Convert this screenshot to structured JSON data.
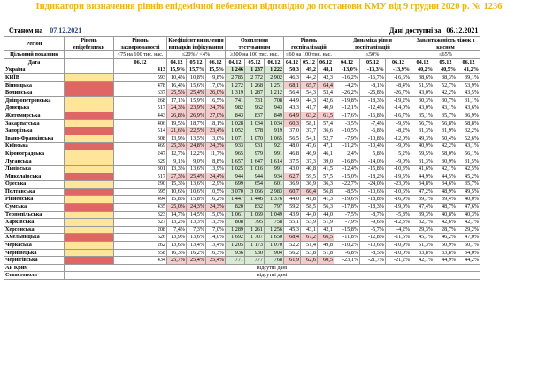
{
  "title": "Індикатори визначення рівнів епідемічної небезпеки відповідно до постанови КМУ від 9 грудня 2020 р. № 1236",
  "status_label": "Станом на",
  "status_date": "07.12.2021",
  "data_label": "Дані доступні за",
  "data_date": "06.12.2021",
  "headers": {
    "region": "Регіон",
    "level": "Рівень епідебезпеки",
    "incidence": "Рівень захворюваності",
    "detection": "Коефіцієнт виявлення випадків інфікування",
    "testing": "Охоплення тестуванням",
    "hospital": "Рівень госпіталізацій",
    "dynamics": "Динаміка рівня госпіталізацій",
    "occupancy": "Завантаженість ліжок з киснем",
    "target": "Цільовий показник",
    "date": "Дата",
    "t_incidence": "<75 на 100 тис. нас.",
    "t_detection": "≤20% / <4%",
    "t_testing": "≥300 на 100 тис. нас.",
    "t_hospital": "≤60 на 100 тис. нас.",
    "t_dynamics": "≤50%",
    "t_occupancy": "≤65%",
    "d_incidence": "06.12",
    "dates": [
      "04.12",
      "05.12",
      "06.12"
    ]
  },
  "rows": [
    {
      "name": "Україна",
      "level": "",
      "inc": "413",
      "det": [
        "15,9%",
        "15,7%",
        "15,5%"
      ],
      "test": [
        "1 246",
        "1 237",
        "1 222"
      ],
      "hosp": [
        "50,3",
        "49,2",
        "48,1"
      ],
      "dyn": [
        "-13,0%",
        "-13,3%",
        "-13,9%"
      ],
      "occ": [
        "40,2%",
        "40,5%",
        "41,2%"
      ]
    },
    {
      "name": "КИЇВ",
      "level": "yel",
      "inc": "593",
      "det": [
        "10,4%",
        "10,8%",
        "9,8%"
      ],
      "test": [
        "2 785",
        "2 772",
        "2 902"
      ],
      "hosp": [
        "46,3",
        "44,2",
        "42,3"
      ],
      "dyn": [
        "-16,2%",
        "-16,7%",
        "-16,6%"
      ],
      "occ": [
        "38,6%",
        "38,3%",
        "39,1%"
      ]
    },
    {
      "name": "Вінницька",
      "level": "red",
      "inc": "478",
      "det": [
        "16,4%",
        "15,6%",
        "17,0%"
      ],
      "test": [
        "1 272",
        "1 268",
        "1 251"
      ],
      "hosp": [
        "68,1",
        "65,7",
        "64,4"
      ],
      "dyn": [
        "-4,2%",
        "-8,1%",
        "-8,4%"
      ],
      "occ": [
        "51,5%",
        "52,7%",
        "53,9%"
      ]
    },
    {
      "name": "Волинська",
      "level": "red",
      "inc": "637",
      "det": [
        "25,5%",
        "25,4%",
        "26,0%"
      ],
      "test": [
        "1 319",
        "1 287",
        "1 212"
      ],
      "hosp": [
        "56,4",
        "54,3",
        "53,4"
      ],
      "dyn": [
        "-26,2%",
        "-25,8%",
        "-26,7%"
      ],
      "occ": [
        "43,0%",
        "42,2%",
        "43,5%"
      ]
    },
    {
      "name": "Дніпропетровська",
      "level": "yel",
      "inc": "268",
      "det": [
        "17,1%",
        "15,9%",
        "16,5%"
      ],
      "test": [
        "741",
        "731",
        "708"
      ],
      "hosp": [
        "44,9",
        "44,3",
        "42,6"
      ],
      "dyn": [
        "-19,8%",
        "-18,3%",
        "-19,2%"
      ],
      "occ": [
        "30,3%",
        "30,7%",
        "31,1%"
      ]
    },
    {
      "name": "Донецька",
      "level": "yel",
      "inc": "517",
      "det": [
        "24,3%",
        "23,9%",
        "24,7%"
      ],
      "test": [
        "982",
        "962",
        "943"
      ],
      "hosp": [
        "43,3",
        "41,7",
        "40,9"
      ],
      "dyn": [
        "-12,1%",
        "-12,4%",
        "-14,0%"
      ],
      "occ": [
        "43,0%",
        "43,1%",
        "43,6%"
      ]
    },
    {
      "name": "Житомирська",
      "level": "red",
      "inc": "443",
      "det": [
        "26,8%",
        "26,9%",
        "27,0%"
      ],
      "test": [
        "843",
        "837",
        "849"
      ],
      "hosp": [
        "64,9",
        "63,2",
        "61,5"
      ],
      "dyn": [
        "-17,6%",
        "-16,8%",
        "-16,7%"
      ],
      "occ": [
        "35,1%",
        "35,7%",
        "36,9%"
      ]
    },
    {
      "name": "Закарпатська",
      "level": "yel",
      "inc": "406",
      "det": [
        "19,5%",
        "18,7%",
        "18,1%"
      ],
      "test": [
        "1 028",
        "1 034",
        "1 034"
      ],
      "hosp": [
        "60,3",
        "58,1",
        "57,4"
      ],
      "dyn": [
        "-3,5%",
        "-7,4%",
        "-9,3%"
      ],
      "occ": [
        "56,7%",
        "56,8%",
        "58,8%"
      ]
    },
    {
      "name": "Запорізька",
      "level": "red",
      "inc": "514",
      "det": [
        "21,6%",
        "22,5%",
        "23,4%"
      ],
      "test": [
        "1 052",
        "978",
        "919"
      ],
      "hosp": [
        "37,0",
        "37,7",
        "36,6"
      ],
      "dyn": [
        "-10,5%",
        "-6,8%",
        "-8,2%"
      ],
      "occ": [
        "31,3%",
        "31,9%",
        "32,2%"
      ]
    },
    {
      "name": "Івано-Франківська",
      "level": "yel",
      "inc": "308",
      "det": [
        "13,9%",
        "13,5%",
        "13,0%"
      ],
      "test": [
        "1 071",
        "1 070",
        "1 065"
      ],
      "hosp": [
        "56,5",
        "54,1",
        "52,7"
      ],
      "dyn": [
        "-7,9%",
        "-10,8%",
        "-12,0%"
      ],
      "occ": [
        "49,3%",
        "50,4%",
        "52,6%"
      ]
    },
    {
      "name": "Київська",
      "level": "red",
      "inc": "469",
      "det": [
        "25,3%",
        "24,8%",
        "24,3%"
      ],
      "test": [
        "933",
        "931",
        "921"
      ],
      "hosp": [
        "48,0",
        "47,6",
        "47,1"
      ],
      "dyn": [
        "-11,2%",
        "-10,4%",
        "-9,0%"
      ],
      "occ": [
        "40,9%",
        "42,2%",
        "43,1%"
      ]
    },
    {
      "name": "Кіровоградська",
      "level": "yel",
      "inc": "247",
      "det": [
        "12,7%",
        "12,2%",
        "11,7%"
      ],
      "test": [
        "965",
        "979",
        "991"
      ],
      "hosp": [
        "46,8",
        "46,9",
        "46,1"
      ],
      "dyn": [
        "2,4%",
        "5,8%",
        "5,2%"
      ],
      "occ": [
        "59,5%",
        "58,0%",
        "56,1%"
      ]
    },
    {
      "name": "Луганська",
      "level": "yel",
      "inc": "329",
      "det": [
        "9,1%",
        "9,0%",
        "8,8%"
      ],
      "test": [
        "1 657",
        "1 647",
        "1 614"
      ],
      "hosp": [
        "37,5",
        "37,3",
        "39,0"
      ],
      "dyn": [
        "-16,8%",
        "-14,0%",
        "-9,0%"
      ],
      "occ": [
        "31,3%",
        "30,9%",
        "31,5%"
      ]
    },
    {
      "name": "Львівська",
      "level": "yel",
      "inc": "301",
      "det": [
        "13,3%",
        "13,6%",
        "13,9%"
      ],
      "test": [
        "1 025",
        "1 016",
        "991"
      ],
      "hosp": [
        "43,0",
        "40,8",
        "41,5"
      ],
      "dyn": [
        "-12,4%",
        "-15,8%",
        "-10,3%"
      ],
      "occ": [
        "41,6%",
        "42,1%",
        "42,5%"
      ]
    },
    {
      "name": "Миколаївська",
      "level": "red",
      "inc": "517",
      "det": [
        "27,3%",
        "25,4%",
        "24,4%"
      ],
      "test": [
        "944",
        "944",
        "934"
      ],
      "hosp": [
        "62,7",
        "59,5",
        "57,5"
      ],
      "dyn": [
        "-15,0%",
        "-18,2%",
        "-19,5%"
      ],
      "occ": [
        "44,9%",
        "44,5%",
        "45,2%"
      ]
    },
    {
      "name": "Одеська",
      "level": "yel",
      "inc": "290",
      "det": [
        "15,3%",
        "13,6%",
        "12,9%"
      ],
      "test": [
        "699",
        "654",
        "601"
      ],
      "hosp": [
        "36,9",
        "36,9",
        "36,3"
      ],
      "dyn": [
        "-22,7%",
        "-24,0%",
        "-23,0%"
      ],
      "occ": [
        "34,8%",
        "34,6%",
        "35,7%"
      ]
    },
    {
      "name": "Полтавська",
      "level": "red",
      "inc": "695",
      "det": [
        "10,6%",
        "10,6%",
        "10,5%"
      ],
      "test": [
        "3 070",
        "3 066",
        "2 983"
      ],
      "hosp": [
        "60,7",
        "60,4",
        "56,8"
      ],
      "dyn": [
        "-8,5%",
        "-10,6%",
        "-10,6%"
      ],
      "occ": [
        "47,2%",
        "48,9%",
        "49,5%"
      ]
    },
    {
      "name": "Рівненська",
      "level": "yel",
      "inc": "494",
      "det": [
        "15,8%",
        "15,8%",
        "16,2%"
      ],
      "test": [
        "1 447",
        "1 446",
        "1 376"
      ],
      "hosp": [
        "44,0",
        "41,8",
        "41,3"
      ],
      "dyn": [
        "-19,6%",
        "-18,8%",
        "-16,9%"
      ],
      "occ": [
        "39,7%",
        "39,4%",
        "40,0%"
      ]
    },
    {
      "name": "Сумська",
      "level": "red",
      "inc": "435",
      "det": [
        "25,0%",
        "24,3%",
        "24,3%"
      ],
      "test": [
        "820",
        "832",
        "797"
      ],
      "hosp": [
        "59,2",
        "58,5",
        "56,3"
      ],
      "dyn": [
        "-17,8%",
        "-18,3%",
        "-19,0%"
      ],
      "occ": [
        "47,4%",
        "48,7%",
        "47,6%"
      ]
    },
    {
      "name": "Тернопільська",
      "level": "yel",
      "inc": "323",
      "det": [
        "14,7%",
        "14,5%",
        "15,0%"
      ],
      "test": [
        "1 061",
        "1 069",
        "1 049"
      ],
      "hosp": [
        "43,9",
        "44,0",
        "44,0"
      ],
      "dyn": [
        "-7,5%",
        "-8,7%",
        "-5,8%"
      ],
      "occ": [
        "39,3%",
        "40,8%",
        "40,3%"
      ]
    },
    {
      "name": "Харківська",
      "level": "yel",
      "inc": "327",
      "det": [
        "13,2%",
        "13,3%",
        "13,3%"
      ],
      "test": [
        "808",
        "795",
        "758"
      ],
      "hosp": [
        "55,1",
        "53,9",
        "51,9"
      ],
      "dyn": [
        "-7,9%",
        "-9,6%",
        "-12,3%"
      ],
      "occ": [
        "32,7%",
        "42,6%",
        "42,7%"
      ]
    },
    {
      "name": "Херсонська",
      "level": "yel",
      "inc": "208",
      "det": [
        "7,4%",
        "7,3%",
        "7,0%"
      ],
      "test": [
        "1 289",
        "1 261",
        "1 256"
      ],
      "hosp": [
        "45,3",
        "43,1",
        "42,1"
      ],
      "dyn": [
        "-15,8%",
        "-5,7%",
        "-4,2%"
      ],
      "occ": [
        "29,3%",
        "28,7%",
        "29,2%"
      ]
    },
    {
      "name": "Хмельницька",
      "level": "red",
      "inc": "526",
      "det": [
        "13,9%",
        "13,6%",
        "14,0%"
      ],
      "test": [
        "1 692",
        "1 707",
        "1 650"
      ],
      "hosp": [
        "68,4",
        "67,2",
        "66,5"
      ],
      "dyn": [
        "-11,8%",
        "-12,8%",
        "-11,6%"
      ],
      "occ": [
        "45,7%",
        "46,2%",
        "47,0%"
      ]
    },
    {
      "name": "Черкаська",
      "level": "yel",
      "inc": "262",
      "det": [
        "13,6%",
        "13,4%",
        "13,4%"
      ],
      "test": [
        "1 205",
        "1 173",
        "1 070"
      ],
      "hosp": [
        "52,2",
        "51,4",
        "49,8"
      ],
      "dyn": [
        "-10,2%",
        "-10,6%",
        "-10,9%"
      ],
      "occ": [
        "51,3%",
        "50,9%",
        "50,7%"
      ]
    },
    {
      "name": "Чернівецька",
      "level": "yel",
      "inc": "358",
      "det": [
        "16,3%",
        "16,2%",
        "16,3%"
      ],
      "test": [
        "936",
        "930",
        "904"
      ],
      "hosp": [
        "56,2",
        "53,8",
        "51,8"
      ],
      "dyn": [
        "-6,8%",
        "-8,5%",
        "-10,0%"
      ],
      "occ": [
        "33,8%",
        "33,8%",
        "34,0%"
      ]
    },
    {
      "name": "Чернігівська",
      "level": "red",
      "inc": "434",
      "det": [
        "25,7%",
        "25,4%",
        "25,4%"
      ],
      "test": [
        "771",
        "777",
        "768"
      ],
      "hosp": [
        "61,9",
        "62,6",
        "60,5"
      ],
      "dyn": [
        "-23,1%",
        "-21,7%",
        "-21,2%"
      ],
      "occ": [
        "42,1%",
        "44,9%",
        "44,2%"
      ]
    }
  ],
  "no_data_rows": [
    {
      "name": "АР Крим",
      "note": "відсутні дані"
    },
    {
      "name": "Севастополь",
      "note": "відсутні дані"
    }
  ]
}
